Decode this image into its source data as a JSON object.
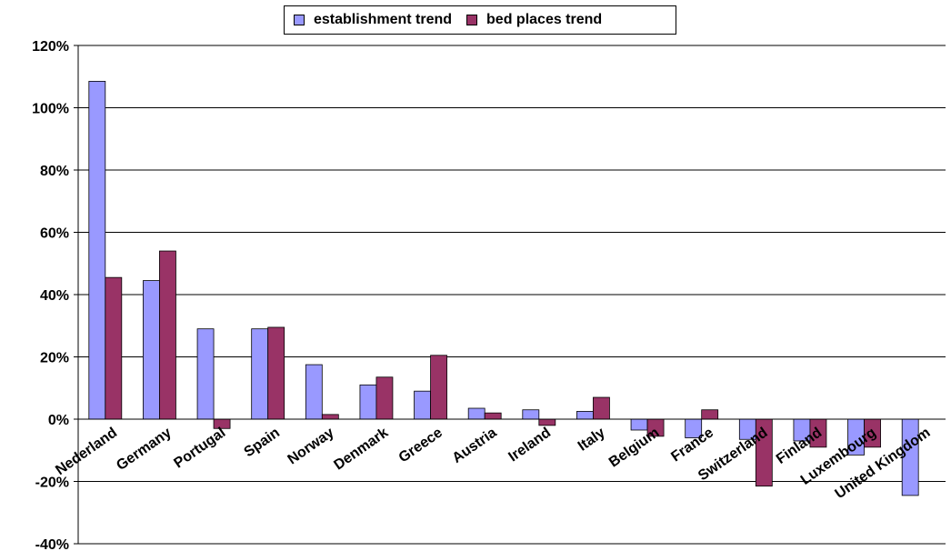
{
  "chart_data": {
    "type": "bar",
    "categories": [
      "Nederland",
      "Germany",
      "Portugal",
      "Spain",
      "Norway",
      "Denmark",
      "Greece",
      "Austria",
      "Ireland",
      "Italy",
      "Belgium",
      "France",
      "Switzerland",
      "Finland",
      "Luxembourg",
      "United Kingdom"
    ],
    "series": [
      {
        "name": "establishment trend",
        "color": "#9999ff",
        "values": [
          108.5,
          44.5,
          29,
          29,
          17.5,
          11,
          9,
          3.5,
          3,
          2.5,
          -3.5,
          -6,
          -6.5,
          -7,
          -11.5,
          -24.5
        ]
      },
      {
        "name": "bed places trend",
        "color": "#993366",
        "values": [
          45.5,
          54,
          -3,
          29.5,
          1.5,
          13.5,
          20.5,
          2,
          -2,
          7,
          -5.5,
          3,
          -21.5,
          -9,
          -9,
          0
        ]
      }
    ],
    "ylim": [
      -40,
      120
    ],
    "yticks": [
      -40,
      -20,
      0,
      20,
      40,
      60,
      80,
      100,
      120
    ],
    "ytick_labels": [
      "-40%",
      "-20%",
      "0%",
      "20%",
      "40%",
      "60%",
      "80%",
      "100%",
      "120%"
    ],
    "grid": true,
    "legend_position": "top-center",
    "title": "",
    "xlabel": "",
    "ylabel": ""
  }
}
